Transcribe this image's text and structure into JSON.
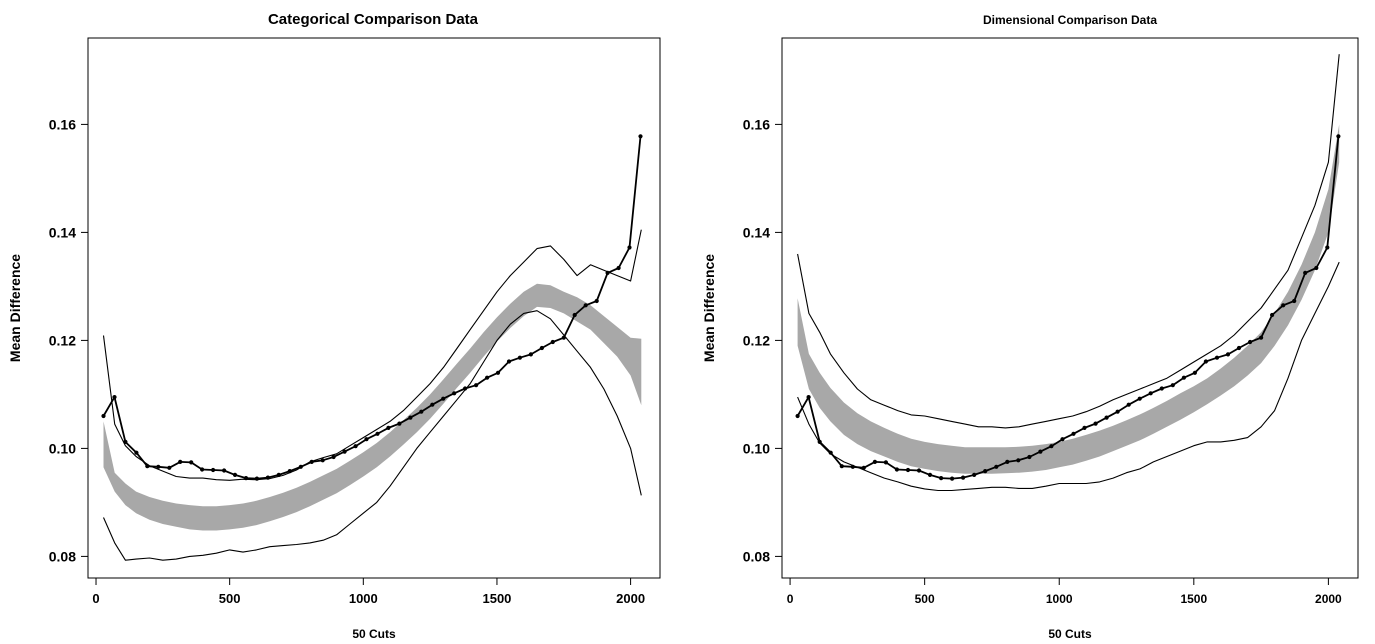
{
  "chart_data": [
    {
      "type": "line",
      "title": "Categorical Comparison Data",
      "xlabel": "50 Cuts",
      "ylabel": "Mean Difference",
      "xlim": [
        -30,
        2110
      ],
      "ylim": [
        0.076,
        0.176
      ],
      "xticks": [
        0,
        500,
        1000,
        1500,
        2000
      ],
      "xtick_labels": [
        "0",
        "500",
        "1000",
        "1500",
        "2000"
      ],
      "yticks": [
        0.08,
        0.1,
        0.12,
        0.14,
        0.16
      ],
      "ytick_labels": [
        "0.08",
        "0.10",
        "0.12",
        "0.14",
        "0.16"
      ],
      "grid": false,
      "series": [
        {
          "role": "observed",
          "color": "#000000",
          "markers": true,
          "x": [
            28,
            69,
            110,
            151,
            192,
            233,
            274,
            315,
            356,
            397,
            438,
            479,
            520,
            561,
            602,
            643,
            684,
            725,
            766,
            807,
            848,
            889,
            930,
            971,
            1012,
            1053,
            1094,
            1135,
            1176,
            1217,
            1258,
            1299,
            1340,
            1381,
            1422,
            1463,
            1504,
            1545,
            1586,
            1627,
            1668,
            1709,
            1750,
            1791,
            1832,
            1873,
            1914,
            1955,
            1996,
            2037
          ],
          "y": [
            0.106,
            0.1095,
            0.1012,
            0.0992,
            0.0967,
            0.0966,
            0.0964,
            0.0975,
            0.0974,
            0.0961,
            0.096,
            0.0959,
            0.0951,
            0.0945,
            0.0944,
            0.0946,
            0.0951,
            0.0958,
            0.0966,
            0.0975,
            0.0978,
            0.0984,
            0.0994,
            0.1004,
            0.1017,
            0.1027,
            0.1038,
            0.1046,
            0.1057,
            0.1068,
            0.1081,
            0.1092,
            0.1102,
            0.1111,
            0.1117,
            0.1131,
            0.114,
            0.1161,
            0.1168,
            0.1174,
            0.1186,
            0.1197,
            0.1205,
            0.1247,
            0.1265,
            0.1273,
            0.1325,
            0.1334,
            0.1372,
            0.1578
          ]
        },
        {
          "role": "upper-bound",
          "color": "#000000",
          "markers": false,
          "x": [
            28,
            70,
            110,
            150,
            200,
            250,
            300,
            350,
            400,
            450,
            500,
            550,
            600,
            650,
            700,
            750,
            800,
            850,
            900,
            950,
            1000,
            1050,
            1100,
            1150,
            1200,
            1250,
            1300,
            1350,
            1400,
            1450,
            1500,
            1550,
            1600,
            1650,
            1700,
            1750,
            1800,
            1850,
            1900,
            1950,
            2000,
            2040
          ],
          "y": [
            0.1209,
            0.1045,
            0.1005,
            0.0985,
            0.0968,
            0.0958,
            0.0948,
            0.0945,
            0.0945,
            0.0942,
            0.0941,
            0.0943,
            0.0942,
            0.0944,
            0.095,
            0.096,
            0.0975,
            0.0983,
            0.099,
            0.1005,
            0.102,
            0.1035,
            0.105,
            0.107,
            0.1095,
            0.112,
            0.115,
            0.1185,
            0.122,
            0.1255,
            0.129,
            0.132,
            0.1345,
            0.137,
            0.1375,
            0.135,
            0.132,
            0.134,
            0.133,
            0.132,
            0.131,
            0.1405
          ]
        },
        {
          "role": "lower-bound",
          "color": "#000000",
          "markers": false,
          "x": [
            28,
            70,
            110,
            150,
            200,
            250,
            300,
            350,
            400,
            450,
            500,
            550,
            600,
            650,
            700,
            750,
            800,
            850,
            900,
            950,
            1000,
            1050,
            1100,
            1150,
            1200,
            1250,
            1300,
            1350,
            1400,
            1450,
            1500,
            1550,
            1600,
            1650,
            1700,
            1750,
            1800,
            1850,
            1900,
            1950,
            2000,
            2040
          ],
          "y": [
            0.0872,
            0.0825,
            0.0793,
            0.0795,
            0.0797,
            0.0793,
            0.0795,
            0.08,
            0.0802,
            0.0806,
            0.0812,
            0.0808,
            0.0812,
            0.0818,
            0.082,
            0.0822,
            0.0825,
            0.083,
            0.084,
            0.086,
            0.088,
            0.09,
            0.093,
            0.0965,
            0.1,
            0.103,
            0.106,
            0.109,
            0.112,
            0.116,
            0.12,
            0.123,
            0.125,
            0.1255,
            0.124,
            0.121,
            0.118,
            0.115,
            0.111,
            0.106,
            0.1,
            0.0913
          ]
        }
      ],
      "band": {
        "color": "#a8a8a8",
        "x": [
          28,
          70,
          110,
          150,
          200,
          250,
          300,
          350,
          400,
          450,
          500,
          550,
          600,
          650,
          700,
          750,
          800,
          850,
          900,
          950,
          1000,
          1050,
          1100,
          1150,
          1200,
          1250,
          1300,
          1350,
          1400,
          1450,
          1500,
          1550,
          1600,
          1650,
          1700,
          1750,
          1800,
          1850,
          1900,
          1950,
          2000,
          2040
        ],
        "upper": [
          0.105,
          0.0955,
          0.0935,
          0.092,
          0.091,
          0.0903,
          0.0898,
          0.0895,
          0.0893,
          0.0893,
          0.0895,
          0.0898,
          0.0903,
          0.091,
          0.0918,
          0.0927,
          0.0938,
          0.095,
          0.0962,
          0.0977,
          0.0993,
          0.101,
          0.103,
          0.1052,
          0.1075,
          0.11,
          0.1128,
          0.1157,
          0.1185,
          0.1215,
          0.1243,
          0.1268,
          0.129,
          0.1305,
          0.1302,
          0.129,
          0.128,
          0.1265,
          0.1245,
          0.1225,
          0.1205,
          0.1203
        ],
        "lower": [
          0.0965,
          0.092,
          0.0895,
          0.088,
          0.0868,
          0.086,
          0.0855,
          0.085,
          0.0848,
          0.0848,
          0.085,
          0.0853,
          0.0858,
          0.0865,
          0.0873,
          0.0882,
          0.0893,
          0.0905,
          0.0917,
          0.0932,
          0.0948,
          0.0965,
          0.0985,
          0.1007,
          0.103,
          0.1055,
          0.1083,
          0.1112,
          0.114,
          0.117,
          0.1198,
          0.1223,
          0.1245,
          0.1262,
          0.126,
          0.125,
          0.1235,
          0.122,
          0.1195,
          0.117,
          0.1135,
          0.108
        ]
      }
    },
    {
      "type": "line",
      "title": "Dimensional Comparison Data",
      "xlabel": "50 Cuts",
      "ylabel": "Mean Difference",
      "xlim": [
        -30,
        2110
      ],
      "ylim": [
        0.076,
        0.176
      ],
      "xticks": [
        0,
        500,
        1000,
        1500,
        2000
      ],
      "xtick_labels": [
        "0",
        "500",
        "1000",
        "1500",
        "2000"
      ],
      "yticks": [
        0.08,
        0.1,
        0.12,
        0.14,
        0.16
      ],
      "ytick_labels": [
        "0.08",
        "0.10",
        "0.12",
        "0.14",
        "0.16"
      ],
      "grid": false,
      "series": [
        {
          "role": "observed",
          "color": "#000000",
          "markers": true,
          "x": [
            28,
            69,
            110,
            151,
            192,
            233,
            274,
            315,
            356,
            397,
            438,
            479,
            520,
            561,
            602,
            643,
            684,
            725,
            766,
            807,
            848,
            889,
            930,
            971,
            1012,
            1053,
            1094,
            1135,
            1176,
            1217,
            1258,
            1299,
            1340,
            1381,
            1422,
            1463,
            1504,
            1545,
            1586,
            1627,
            1668,
            1709,
            1750,
            1791,
            1832,
            1873,
            1914,
            1955,
            1996,
            2037
          ],
          "y": [
            0.106,
            0.1095,
            0.1012,
            0.0992,
            0.0967,
            0.0966,
            0.0964,
            0.0975,
            0.0974,
            0.0961,
            0.096,
            0.0959,
            0.0951,
            0.0945,
            0.0944,
            0.0946,
            0.0951,
            0.0958,
            0.0966,
            0.0975,
            0.0978,
            0.0984,
            0.0994,
            0.1004,
            0.1017,
            0.1027,
            0.1038,
            0.1046,
            0.1057,
            0.1068,
            0.1081,
            0.1092,
            0.1102,
            0.1111,
            0.1117,
            0.1131,
            0.114,
            0.1161,
            0.1168,
            0.1174,
            0.1186,
            0.1197,
            0.1205,
            0.1247,
            0.1265,
            0.1273,
            0.1325,
            0.1334,
            0.1372,
            0.1578
          ]
        },
        {
          "role": "upper-bound",
          "color": "#000000",
          "markers": false,
          "x": [
            28,
            70,
            110,
            150,
            200,
            250,
            300,
            350,
            400,
            450,
            500,
            550,
            600,
            650,
            700,
            750,
            800,
            850,
            900,
            950,
            1000,
            1050,
            1100,
            1150,
            1200,
            1250,
            1300,
            1350,
            1400,
            1450,
            1500,
            1550,
            1600,
            1650,
            1700,
            1750,
            1800,
            1850,
            1900,
            1950,
            2000,
            2040
          ],
          "y": [
            0.136,
            0.125,
            0.1215,
            0.1175,
            0.114,
            0.111,
            0.109,
            0.108,
            0.107,
            0.1062,
            0.106,
            0.1055,
            0.105,
            0.1045,
            0.104,
            0.104,
            0.1038,
            0.104,
            0.1045,
            0.105,
            0.1055,
            0.106,
            0.1068,
            0.1078,
            0.109,
            0.11,
            0.111,
            0.112,
            0.113,
            0.1145,
            0.116,
            0.1175,
            0.119,
            0.121,
            0.1235,
            0.126,
            0.1295,
            0.133,
            0.139,
            0.145,
            0.153,
            0.173
          ]
        },
        {
          "role": "lower-bound",
          "color": "#000000",
          "markers": false,
          "x": [
            28,
            70,
            110,
            150,
            200,
            250,
            300,
            350,
            400,
            450,
            500,
            550,
            600,
            650,
            700,
            750,
            800,
            850,
            900,
            950,
            1000,
            1050,
            1100,
            1150,
            1200,
            1250,
            1300,
            1350,
            1400,
            1450,
            1500,
            1550,
            1600,
            1650,
            1700,
            1750,
            1800,
            1850,
            1900,
            1950,
            2000,
            2040
          ],
          "y": [
            0.1095,
            0.1045,
            0.101,
            0.099,
            0.0975,
            0.0965,
            0.0955,
            0.0945,
            0.0938,
            0.093,
            0.0925,
            0.0922,
            0.0922,
            0.0924,
            0.0926,
            0.0928,
            0.0928,
            0.0926,
            0.0926,
            0.093,
            0.0935,
            0.0935,
            0.0935,
            0.0938,
            0.0945,
            0.0955,
            0.0962,
            0.0975,
            0.0985,
            0.0995,
            0.1005,
            0.1012,
            0.1012,
            0.1015,
            0.102,
            0.104,
            0.107,
            0.113,
            0.12,
            0.125,
            0.13,
            0.1345
          ]
        }
      ],
      "band": {
        "color": "#a8a8a8",
        "x": [
          28,
          70,
          110,
          150,
          200,
          250,
          300,
          350,
          400,
          450,
          500,
          550,
          600,
          650,
          700,
          750,
          800,
          850,
          900,
          950,
          1000,
          1050,
          1100,
          1150,
          1200,
          1250,
          1300,
          1350,
          1400,
          1450,
          1500,
          1550,
          1600,
          1650,
          1700,
          1750,
          1800,
          1850,
          1900,
          1950,
          2000,
          2040
        ],
        "upper": [
          0.1278,
          0.1175,
          0.114,
          0.1112,
          0.1085,
          0.1065,
          0.105,
          0.1038,
          0.1027,
          0.1018,
          0.1012,
          0.1008,
          0.1005,
          0.1002,
          0.1002,
          0.1002,
          0.1002,
          0.1003,
          0.1005,
          0.1008,
          0.1012,
          0.1018,
          0.1025,
          0.1033,
          0.1042,
          0.1052,
          0.1063,
          0.1075,
          0.1088,
          0.1102,
          0.1115,
          0.113,
          0.1148,
          0.1168,
          0.119,
          0.1215,
          0.125,
          0.129,
          0.134,
          0.14,
          0.148,
          0.16
        ],
        "lower": [
          0.119,
          0.111,
          0.1075,
          0.105,
          0.1025,
          0.1008,
          0.0995,
          0.0985,
          0.0975,
          0.0967,
          0.0962,
          0.0958,
          0.0955,
          0.0953,
          0.0953,
          0.0953,
          0.0954,
          0.0955,
          0.0957,
          0.096,
          0.0965,
          0.097,
          0.0977,
          0.0985,
          0.0995,
          0.1005,
          0.1015,
          0.1027,
          0.104,
          0.1053,
          0.1067,
          0.1082,
          0.1098,
          0.1115,
          0.1135,
          0.1158,
          0.119,
          0.1228,
          0.1275,
          0.133,
          0.14,
          0.153
        ]
      }
    }
  ]
}
